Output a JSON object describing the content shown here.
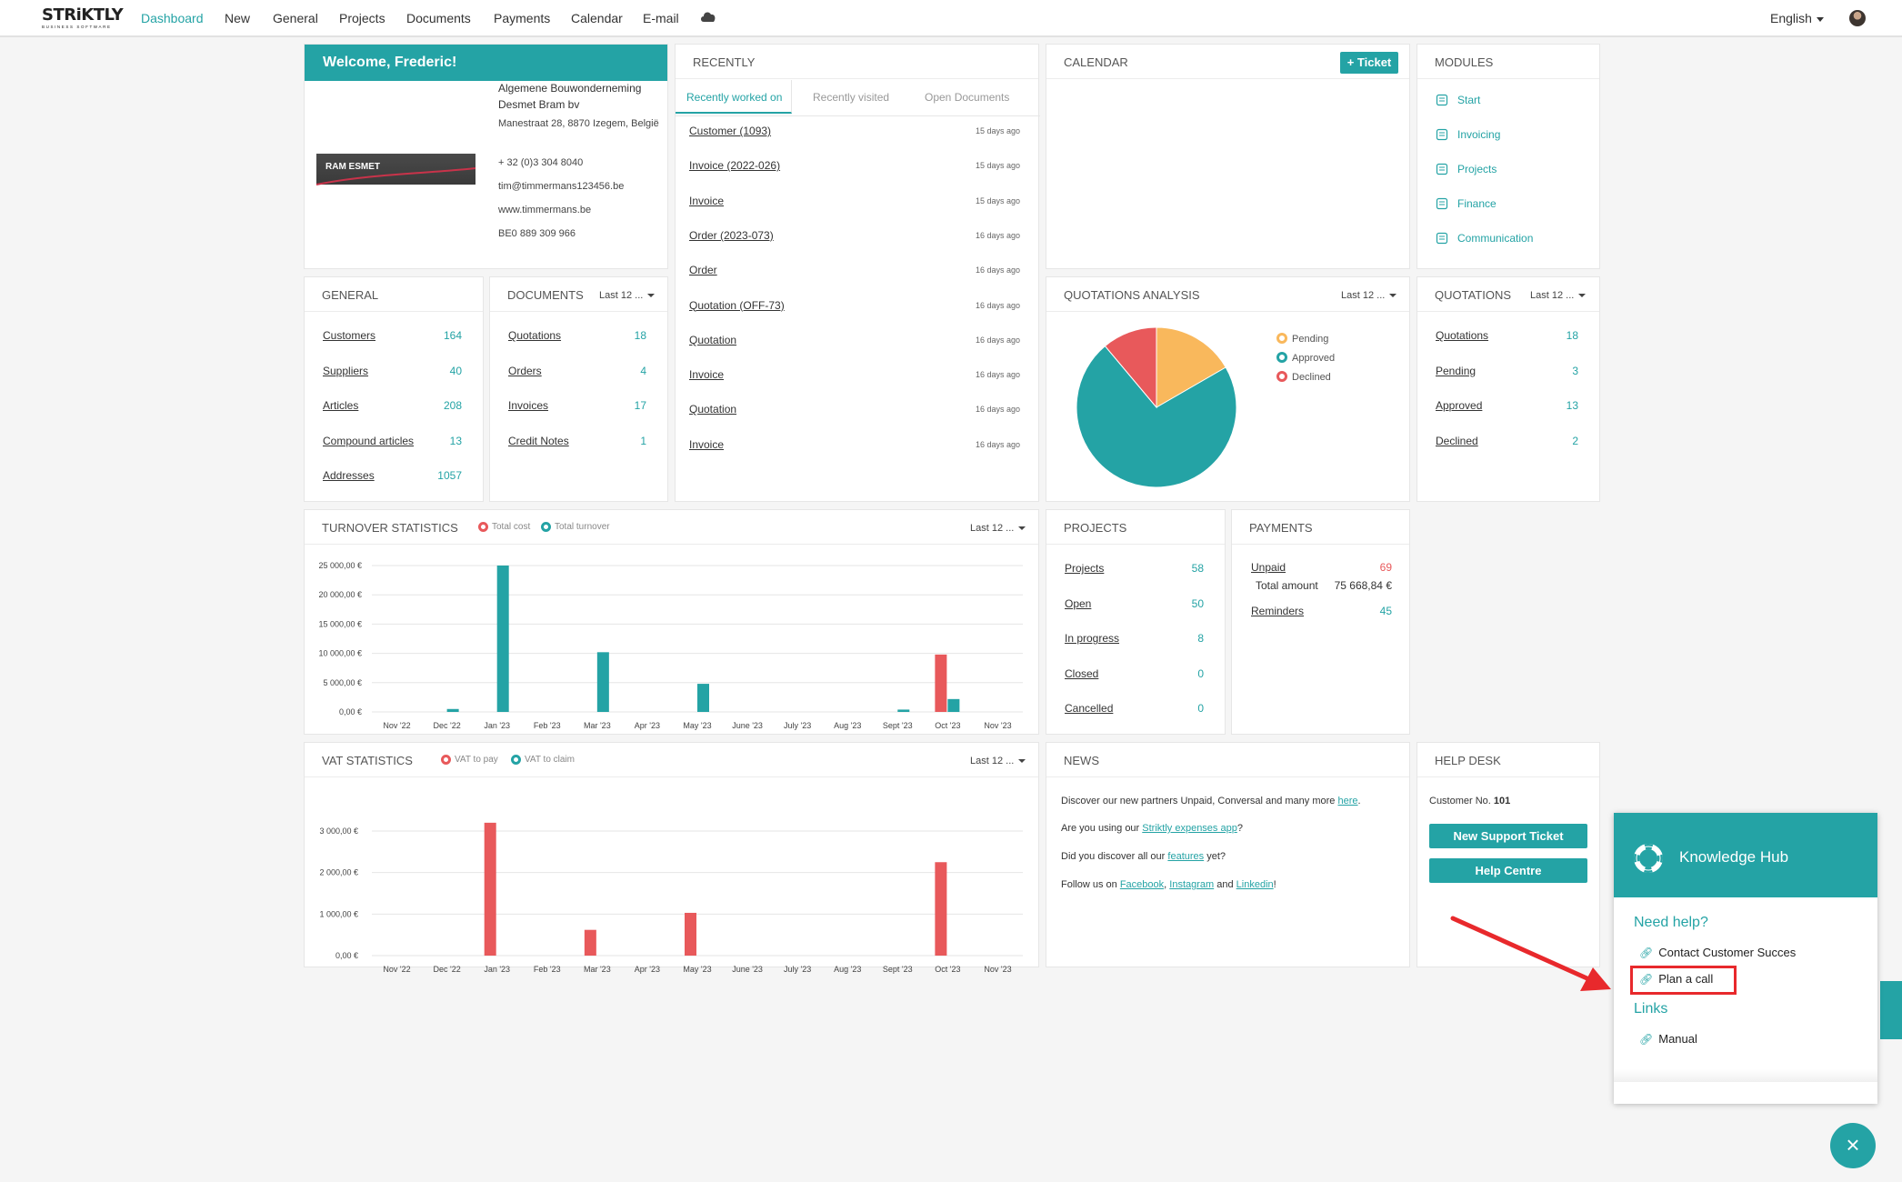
{
  "nav": {
    "logo_text": "STRiKTLY",
    "logo_sub": "BUSINESS SOFTWARE",
    "items": [
      "Dashboard",
      "New",
      "General",
      "Projects",
      "Documents",
      "Payments",
      "Calendar",
      "E-mail"
    ],
    "active": "Dashboard",
    "cloud_icon": "cloud-icon",
    "language": "English"
  },
  "welcome": {
    "title": "Welcome, Frederic!",
    "company": "Algemene Bouwonderneming Desmet Bram bv",
    "address": "Manestraat 28, 8870 Izegem, België",
    "phone": "+ 32 (0)3 304 8040",
    "email": "tim@timmermans123456.be",
    "website": "www.timmermans.be",
    "vat": "BE0 889 309 966",
    "logo_text": "RAM ESMET"
  },
  "recently": {
    "title": "RECENTLY",
    "tabs": [
      "Recently worked on",
      "Recently visited",
      "Open Documents"
    ],
    "items": [
      {
        "label": "Customer (1093)",
        "ago": "15 days ago"
      },
      {
        "label": "Invoice (2022-026)",
        "ago": "15 days ago"
      },
      {
        "label": "Invoice",
        "ago": "15 days ago"
      },
      {
        "label": "Order (2023-073)",
        "ago": "16 days ago"
      },
      {
        "label": "Order",
        "ago": "16 days ago"
      },
      {
        "label": "Quotation (OFF-73)",
        "ago": "16 days ago"
      },
      {
        "label": "Quotation",
        "ago": "16 days ago"
      },
      {
        "label": "Invoice",
        "ago": "16 days ago"
      },
      {
        "label": "Quotation",
        "ago": "16 days ago"
      },
      {
        "label": "Invoice",
        "ago": "16 days ago"
      }
    ]
  },
  "calendar": {
    "title": "CALENDAR",
    "ticket_button": "+ Ticket"
  },
  "modules": {
    "title": "MODULES",
    "items": [
      {
        "label": "Start",
        "icon": "user-icon"
      },
      {
        "label": "Invoicing",
        "icon": "invoice-icon"
      },
      {
        "label": "Projects",
        "icon": "projects-icon"
      },
      {
        "label": "Finance",
        "icon": "finance-icon"
      },
      {
        "label": "Communication",
        "icon": "megaphone-icon"
      }
    ]
  },
  "general": {
    "title": "GENERAL",
    "rows": [
      {
        "label": "Customers",
        "value": "164"
      },
      {
        "label": "Suppliers",
        "value": "40"
      },
      {
        "label": "Articles",
        "value": "208"
      },
      {
        "label": "Compound articles",
        "value": "13"
      },
      {
        "label": "Addresses",
        "value": "1057"
      }
    ]
  },
  "documents": {
    "title": "DOCUMENTS",
    "filter": "Last 12 ...",
    "rows": [
      {
        "label": "Quotations",
        "value": "18"
      },
      {
        "label": "Orders",
        "value": "4"
      },
      {
        "label": "Invoices",
        "value": "17"
      },
      {
        "label": "Credit Notes",
        "value": "1"
      }
    ]
  },
  "quotations_analysis": {
    "title": "QUOTATIONS ANALYSIS",
    "filter": "Last 12 ..."
  },
  "quotations": {
    "title": "QUOTATIONS",
    "filter": "Last 12 ...",
    "rows": [
      {
        "label": "Quotations",
        "value": "18"
      },
      {
        "label": "Pending",
        "value": "3"
      },
      {
        "label": "Approved",
        "value": "13"
      },
      {
        "label": "Declined",
        "value": "2"
      }
    ]
  },
  "projects": {
    "title": "PROJECTS",
    "rows": [
      {
        "label": "Projects",
        "value": "58"
      },
      {
        "label": "Open",
        "value": "50"
      },
      {
        "label": "In progress",
        "value": "8"
      },
      {
        "label": "Closed",
        "value": "0"
      },
      {
        "label": "Cancelled",
        "value": "0"
      }
    ]
  },
  "payments": {
    "title": "PAYMENTS",
    "unpaid_label": "Unpaid",
    "unpaid_value": "69",
    "total_label": "Total amount",
    "total_value": "75 668,84 €",
    "reminders_label": "Reminders",
    "reminders_value": "45"
  },
  "turnover": {
    "title": "TURNOVER STATISTICS",
    "filter": "Last 12 ..."
  },
  "vat": {
    "title": "VAT STATISTICS",
    "filter": "Last 12 ..."
  },
  "news": {
    "title": "NEWS",
    "line1_text": "Discover our new partners Unpaid, Conversal and many more",
    "line1_link": "here",
    "line1_end": ".",
    "line2_text": "Are you using our",
    "line2_link": "Striktly expenses app",
    "line2_end": "?",
    "line3_text": "Did you discover all our",
    "line3_link": "features",
    "line3_end": "yet?",
    "line4_text": "Follow us on",
    "link_facebook": "Facebook",
    "sep1": ",",
    "link_instagram": "Instagram",
    "and": "and",
    "link_linkedin": "Linkedin",
    "line4_end": "!"
  },
  "helpdesk": {
    "title": "HELP DESK",
    "customer_label": "Customer No.",
    "customer_no": "101",
    "btn_ticket": "New Support Ticket",
    "btn_help": "Help Centre"
  },
  "knowledge_hub": {
    "title": "Knowledge Hub",
    "need_help": "Need help?",
    "contact": "Contact Customer Succes",
    "plan_call": "Plan a call",
    "links": "Links",
    "manual": "Manual",
    "close": "×"
  },
  "colors": {
    "accent": "#24a3a5",
    "red": "#e8595b",
    "orange": "#f9b85c",
    "highlight": "#e8292c"
  },
  "chart_data": [
    {
      "type": "pie",
      "title": "QUOTATIONS ANALYSIS",
      "categories": [
        "Pending",
        "Approved",
        "Declined"
      ],
      "values": [
        3,
        13,
        2
      ],
      "colors": [
        "#f9b85c",
        "#24a3a5",
        "#e8595b"
      ],
      "legend": "right"
    },
    {
      "type": "bar",
      "title": "TURNOVER STATISTICS",
      "categories": [
        "Nov '22",
        "Dec '22",
        "Jan '23",
        "Feb '23",
        "Mar '23",
        "Apr '23",
        "May '23",
        "June '23",
        "July '23",
        "Aug '23",
        "Sept '23",
        "Oct '23",
        "Nov '23"
      ],
      "series": [
        {
          "name": "Total cost",
          "color": "#e8595b",
          "values": [
            0,
            0,
            0,
            0,
            0,
            0,
            0,
            0,
            0,
            0,
            0,
            9800,
            0
          ]
        },
        {
          "name": "Total turnover",
          "color": "#24a3a5",
          "values": [
            0,
            500,
            25000,
            0,
            10200,
            0,
            4800,
            0,
            0,
            0,
            400,
            2200,
            0
          ]
        }
      ],
      "yticks": [
        "0,00 €",
        "5 000,00 €",
        "10 000,00 €",
        "15 000,00 €",
        "20 000,00 €",
        "25 000,00 €"
      ],
      "ylim": [
        0,
        25000
      ],
      "grid": true,
      "legend": "top"
    },
    {
      "type": "bar",
      "title": "VAT STATISTICS",
      "categories": [
        "Nov '22",
        "Dec '22",
        "Jan '23",
        "Feb '23",
        "Mar '23",
        "Apr '23",
        "May '23",
        "June '23",
        "July '23",
        "Aug '23",
        "Sept '23",
        "Oct '23",
        "Nov '23"
      ],
      "series": [
        {
          "name": "VAT to pay",
          "color": "#e8595b",
          "values": [
            0,
            0,
            3200,
            0,
            620,
            0,
            1030,
            0,
            0,
            0,
            0,
            2250,
            0
          ]
        },
        {
          "name": "VAT to claim",
          "color": "#24a3a5",
          "values": [
            0,
            0,
            0,
            0,
            0,
            0,
            0,
            0,
            0,
            0,
            0,
            0,
            0
          ]
        }
      ],
      "yticks": [
        "0,00 €",
        "1 000,00 €",
        "2 000,00 €",
        "3 000,00 €"
      ],
      "ylim": [
        0,
        3000
      ],
      "grid": true,
      "legend": "top"
    }
  ]
}
